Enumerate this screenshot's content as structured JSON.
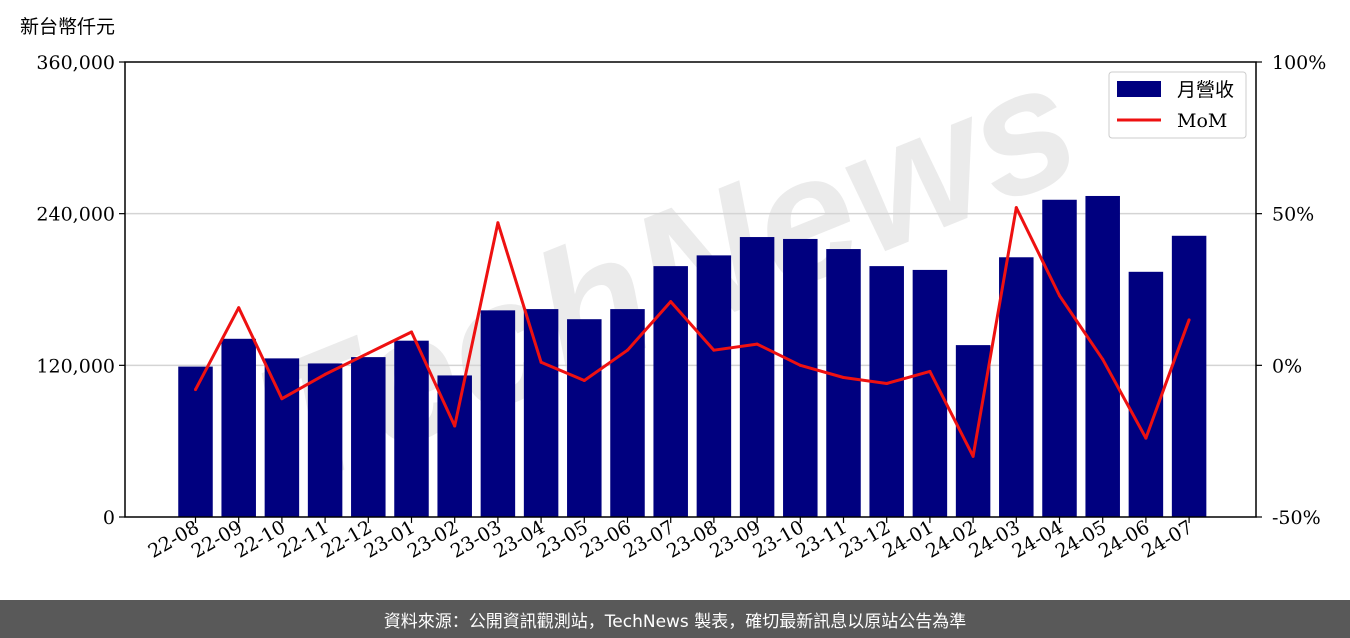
{
  "chart_data": {
    "type": "bar",
    "categories": [
      "22-08",
      "22-09",
      "22-10",
      "22-11",
      "22-12",
      "23-01",
      "23-02",
      "23-03",
      "23-04",
      "23-05",
      "23-06",
      "23-07",
      "23-08",
      "23-09",
      "23-10",
      "23-11",
      "23-12",
      "24-01",
      "24-02",
      "24-03",
      "24-04",
      "24-05",
      "24-06",
      "24-07"
    ],
    "series": [
      {
        "name": "月營收",
        "type": "bar",
        "axis": "left",
        "color": "#00007f",
        "values": [
          119000,
          141000,
          125500,
          121500,
          126500,
          139500,
          112000,
          163500,
          164500,
          156500,
          164500,
          198500,
          207000,
          221500,
          220000,
          212000,
          198500,
          195500,
          136000,
          205500,
          251000,
          254000,
          194000,
          222500
        ]
      },
      {
        "name": "MoM",
        "type": "line",
        "axis": "right",
        "color": "#ee1111",
        "values": [
          -8,
          19,
          -11,
          -3,
          4,
          11,
          -20,
          47,
          1,
          -5,
          5,
          21,
          5,
          7,
          0,
          -4,
          -6,
          -2,
          -30,
          52,
          23,
          2,
          -24,
          15
        ]
      }
    ],
    "left_axis": {
      "label": "新台幣仟元",
      "ylim": [
        0,
        360000
      ],
      "ticks": [
        "0",
        "120,000",
        "240,000",
        "360,000"
      ]
    },
    "right_axis": {
      "ylim": [
        -50,
        100
      ],
      "ticks": [
        "-50%",
        "0%",
        "50%",
        "100%"
      ]
    },
    "grid": "horizontal",
    "legend": "top-right",
    "watermark": "TechNews"
  },
  "footer": {
    "text": "資料來源：公開資訊觀測站，TechNews 製表，確切最新訊息以原站公告為準"
  }
}
